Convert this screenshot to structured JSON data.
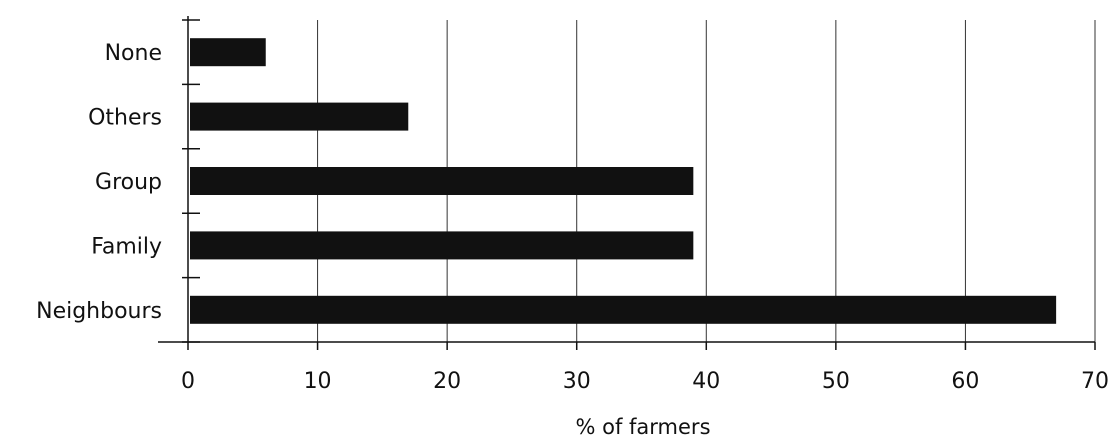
{
  "chart_data": {
    "type": "bar",
    "orientation": "horizontal",
    "categories": [
      "None",
      "Others",
      "Group",
      "Family",
      "Neighbours"
    ],
    "values": [
      6,
      17,
      39,
      39,
      67
    ],
    "xlabel": "% of farmers",
    "ylabel": "",
    "xlim": [
      0,
      70
    ],
    "x_ticks": [
      "0",
      "10",
      "20",
      "30",
      "40",
      "50",
      "60",
      "70"
    ],
    "grid": "vertical lines at x ticks",
    "bar_color": "#111111"
  }
}
